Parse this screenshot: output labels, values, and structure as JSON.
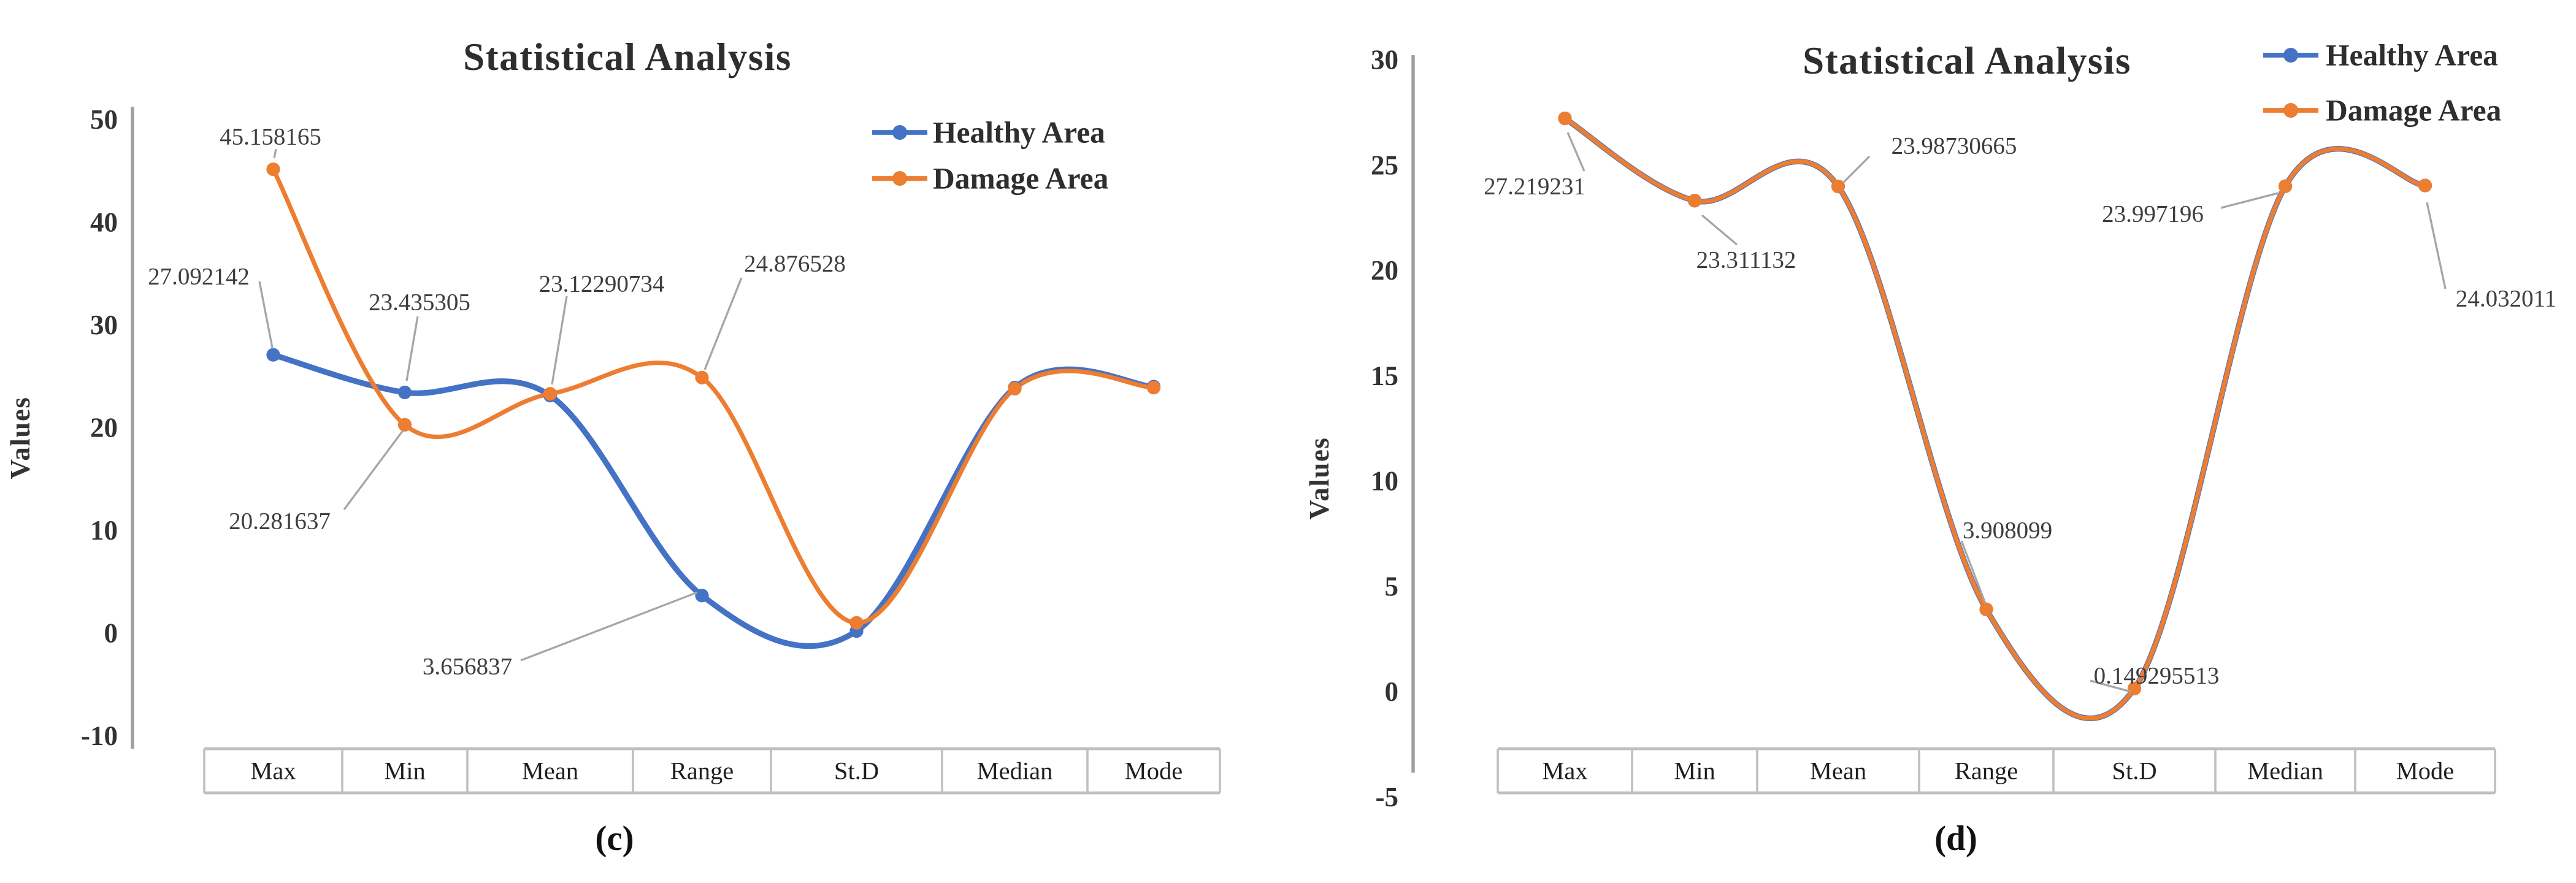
{
  "colors": {
    "healthy": "#4472C4",
    "damage": "#ED7D31",
    "leader": "#A6A6A6",
    "axis": "#9E9E9E",
    "table_border": "#BFBFBF",
    "text": "#2E2E2E"
  },
  "chart_data": [
    {
      "type": "line",
      "id": "c",
      "caption": "(c)",
      "title": "Statistical Analysis",
      "xlabel": "",
      "ylabel": "Values",
      "categories": [
        "Max",
        "Min",
        "Mean",
        "Range",
        "St.D",
        "Median",
        "Mode"
      ],
      "y_ticks": [
        "50",
        "40",
        "30",
        "20",
        "10",
        "0",
        "-10"
      ],
      "ylim": [
        -10,
        50
      ],
      "grid": false,
      "legend_position": "top-right",
      "smooth": true,
      "legend_items": [
        {
          "label": "Healthy Area",
          "color": "#4472C4"
        },
        {
          "label": "Damage Area",
          "color": "#ED7D31"
        }
      ],
      "series": [
        {
          "name": "Healthy Area",
          "color": "#4472C4",
          "values": [
            27.092142,
            23.435305,
            23.12290734,
            3.656837,
            0.2,
            23.9,
            24.0
          ]
        },
        {
          "name": "Damage Area",
          "color": "#ED7D31",
          "values": [
            45.158165,
            20.281637,
            23.3,
            24.876528,
            1.0,
            23.8,
            23.9
          ]
        }
      ],
      "annotations": [
        {
          "text": "45.158165",
          "series": 1,
          "point": 0,
          "label_x": 147,
          "label_y": 74,
          "leader": [
            150,
            81,
            149,
            86
          ]
        },
        {
          "text": "27.092142",
          "series": 0,
          "point": 0,
          "label_x": 108,
          "label_y": 150,
          "leader": [
            141,
            153,
            148,
            189
          ]
        },
        {
          "text": "23.435305",
          "series": 0,
          "point": 1,
          "label_x": 228,
          "label_y": 164,
          "leader": [
            227,
            172,
            221,
            207
          ]
        },
        {
          "text": "23.12290734",
          "series": 0,
          "point": 2,
          "label_x": 327,
          "label_y": 154,
          "leader": [
            308,
            161,
            300,
            209
          ]
        },
        {
          "text": "24.876528",
          "series": 1,
          "point": 3,
          "label_x": 432,
          "label_y": 143,
          "leader": [
            403,
            151,
            383,
            201
          ]
        },
        {
          "text": "20.281637",
          "series": 1,
          "point": 1,
          "label_x": 152,
          "label_y": 283,
          "leader": [
            187,
            277,
            219,
            234
          ]
        },
        {
          "text": "3.656837",
          "series": 0,
          "point": 3,
          "label_x": 254,
          "label_y": 362,
          "leader": [
            283,
            359,
            379,
            322
          ]
        }
      ]
    },
    {
      "type": "line",
      "id": "d",
      "caption": "(d)",
      "title": "Statistical Analysis",
      "xlabel": "",
      "ylabel": "Values",
      "categories": [
        "Max",
        "Min",
        "Mean",
        "Range",
        "St.D",
        "Median",
        "Mode"
      ],
      "y_ticks": [
        "30",
        "25",
        "20",
        "15",
        "10",
        "5",
        "0",
        "-5"
      ],
      "ylim": [
        -5,
        30
      ],
      "grid": false,
      "legend_position": "top-right",
      "smooth": true,
      "legend_items": [
        {
          "label": "Healthy Area",
          "color": "#4472C4"
        },
        {
          "label": "Damage Area",
          "color": "#ED7D31"
        }
      ],
      "series": [
        {
          "name": "Healthy Area",
          "color": "#4472C4",
          "values": [
            27.219231,
            23.311132,
            23.98730665,
            3.908099,
            0.149295513,
            23.997196,
            24.032011
          ]
        },
        {
          "name": "Damage Area",
          "color": "#ED7D31",
          "values": [
            27.219231,
            23.311132,
            23.98730665,
            3.908099,
            0.149295513,
            23.997196,
            24.032011
          ]
        }
      ],
      "annotations": [
        {
          "text": "27.219231",
          "series": 1,
          "point": 0,
          "label_x": 834,
          "label_y": 101,
          "leader": [
            861,
            93,
            852,
            72
          ]
        },
        {
          "text": "23.311132",
          "series": 1,
          "point": 1,
          "label_x": 949,
          "label_y": 141,
          "leader": [
            925,
            117,
            944,
            133
          ]
        },
        {
          "text": "23.98730665",
          "series": 1,
          "point": 2,
          "label_x": 1062,
          "label_y": 79,
          "leader": [
            1016,
            85,
            1002,
            99
          ]
        },
        {
          "text": "3.908099",
          "series": 1,
          "point": 3,
          "label_x": 1091,
          "label_y": 288,
          "leader": [
            1066,
            294,
            1079,
            328
          ]
        },
        {
          "text": "0.149295513",
          "series": 1,
          "point": 4,
          "label_x": 1172,
          "label_y": 367,
          "leader": [
            1136,
            370,
            1158,
            376
          ]
        },
        {
          "text": "23.997196",
          "series": 1,
          "point": 5,
          "label_x": 1170,
          "label_y": 116,
          "leader": [
            1207,
            113,
            1238,
            105
          ]
        },
        {
          "text": "24.032011",
          "series": 1,
          "point": 6,
          "label_x": 1362,
          "label_y": 162,
          "leader": [
            1319,
            110,
            1329,
            157
          ]
        }
      ]
    }
  ]
}
